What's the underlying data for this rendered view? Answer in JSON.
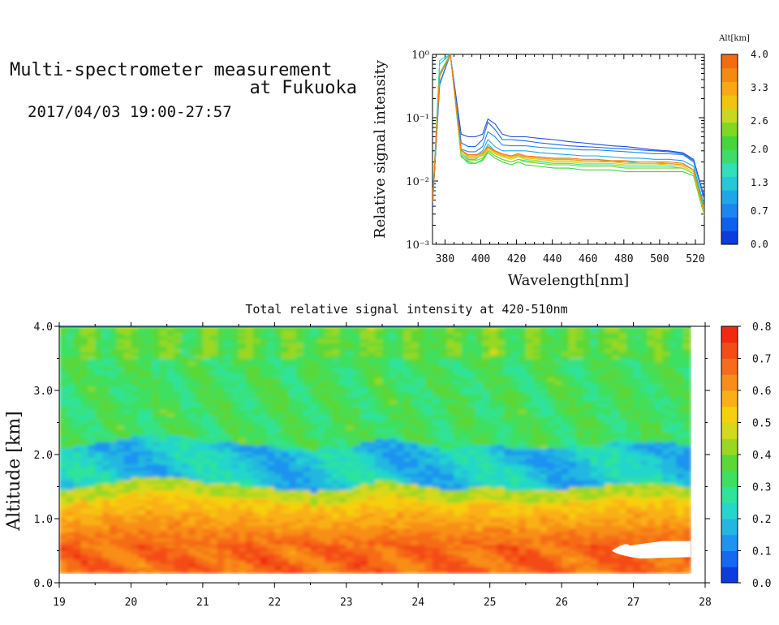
{
  "header": {
    "title_line1": "Multi-spectrometer measurement",
    "title_line2": "at Fukuoka",
    "period": "2017/04/03 19:00-27:57"
  },
  "chart_data": [
    {
      "type": "line",
      "title": "",
      "xlabel": "Wavelength[nm]",
      "ylabel": "Relative signal intensity",
      "yscale": "log",
      "xlim": [
        373,
        525
      ],
      "ylim": [
        0.001,
        1
      ],
      "x_ticks": [
        380,
        400,
        420,
        440,
        460,
        480,
        500,
        520
      ],
      "y_ticks": [
        "10⁻³",
        "10⁻²",
        "10⁻¹",
        "10⁰"
      ],
      "x": [
        373,
        377,
        383,
        389,
        393,
        397,
        401,
        404,
        408,
        412,
        417,
        421,
        425,
        433,
        441,
        449,
        457,
        465,
        473,
        481,
        489,
        497,
        505,
        513,
        519,
        525
      ],
      "legend_title": "Alt[km]",
      "series": [
        {
          "alt": 0.0,
          "color": "#1f4fd6",
          "values": [
            0.004,
            0.35,
            1.0,
            0.055,
            0.05,
            0.05,
            0.055,
            0.095,
            0.08,
            0.055,
            0.05,
            0.05,
            0.05,
            0.047,
            0.045,
            0.042,
            0.04,
            0.038,
            0.036,
            0.035,
            0.033,
            0.031,
            0.03,
            0.028,
            0.022,
            0.0055
          ]
        },
        {
          "alt": 0.35,
          "color": "#1e67e8",
          "values": [
            0.004,
            0.34,
            1.0,
            0.04,
            0.035,
            0.035,
            0.045,
            0.085,
            0.065,
            0.045,
            0.045,
            0.044,
            0.043,
            0.04,
            0.038,
            0.036,
            0.035,
            0.034,
            0.033,
            0.032,
            0.031,
            0.03,
            0.029,
            0.027,
            0.021,
            0.005
          ]
        },
        {
          "alt": 0.7,
          "color": "#1e8bef",
          "values": [
            0.004,
            0.33,
            1.0,
            0.032,
            0.029,
            0.029,
            0.035,
            0.06,
            0.05,
            0.037,
            0.036,
            0.036,
            0.036,
            0.034,
            0.033,
            0.032,
            0.031,
            0.031,
            0.03,
            0.029,
            0.028,
            0.027,
            0.027,
            0.026,
            0.02,
            0.005
          ]
        },
        {
          "alt": 1.0,
          "color": "#1ea8e8",
          "values": [
            0.0045,
            0.5,
            1.0,
            0.03,
            0.025,
            0.025,
            0.03,
            0.045,
            0.035,
            0.03,
            0.03,
            0.03,
            0.03,
            0.028,
            0.027,
            0.026,
            0.025,
            0.025,
            0.024,
            0.023,
            0.023,
            0.022,
            0.022,
            0.021,
            0.017,
            0.004
          ]
        },
        {
          "alt": 1.3,
          "color": "#1fc8d8",
          "values": [
            0.0045,
            0.7,
            1.0,
            0.028,
            0.022,
            0.022,
            0.026,
            0.038,
            0.03,
            0.025,
            0.025,
            0.025,
            0.024,
            0.023,
            0.022,
            0.022,
            0.021,
            0.021,
            0.02,
            0.02,
            0.019,
            0.019,
            0.019,
            0.018,
            0.015,
            0.0038
          ]
        },
        {
          "alt": 1.6,
          "color": "#2fe0b0",
          "values": [
            0.0045,
            0.8,
            1.0,
            0.025,
            0.019,
            0.019,
            0.022,
            0.03,
            0.025,
            0.022,
            0.02,
            0.022,
            0.021,
            0.02,
            0.019,
            0.019,
            0.018,
            0.018,
            0.018,
            0.017,
            0.017,
            0.017,
            0.017,
            0.016,
            0.013,
            0.0035
          ]
        },
        {
          "alt": 2.0,
          "color": "#3ad645",
          "values": [
            0.0045,
            0.5,
            1.0,
            0.024,
            0.02,
            0.019,
            0.021,
            0.028,
            0.023,
            0.02,
            0.018,
            0.02,
            0.018,
            0.017,
            0.016,
            0.016,
            0.015,
            0.015,
            0.015,
            0.014,
            0.014,
            0.014,
            0.014,
            0.014,
            0.012,
            0.0028
          ]
        },
        {
          "alt": 2.3,
          "color": "#7fd620",
          "values": [
            0.0045,
            0.45,
            1.0,
            0.026,
            0.021,
            0.021,
            0.023,
            0.03,
            0.025,
            0.022,
            0.02,
            0.022,
            0.02,
            0.019,
            0.018,
            0.018,
            0.017,
            0.017,
            0.017,
            0.016,
            0.016,
            0.016,
            0.016,
            0.016,
            0.013,
            0.003
          ]
        },
        {
          "alt": 2.6,
          "color": "#c8d820",
          "values": [
            0.0045,
            0.45,
            1.0,
            0.028,
            0.023,
            0.023,
            0.025,
            0.031,
            0.027,
            0.024,
            0.022,
            0.024,
            0.022,
            0.021,
            0.02,
            0.02,
            0.019,
            0.019,
            0.019,
            0.018,
            0.018,
            0.018,
            0.018,
            0.017,
            0.014,
            0.003
          ]
        },
        {
          "alt": 3.0,
          "color": "#f0c410",
          "values": [
            0.0045,
            0.45,
            1.0,
            0.03,
            0.024,
            0.024,
            0.026,
            0.033,
            0.028,
            0.025,
            0.023,
            0.025,
            0.023,
            0.022,
            0.021,
            0.021,
            0.02,
            0.02,
            0.02,
            0.019,
            0.019,
            0.019,
            0.018,
            0.017,
            0.014,
            0.0032
          ]
        },
        {
          "alt": 3.3,
          "color": "#f8a010",
          "values": [
            0.0045,
            0.45,
            1.0,
            0.03,
            0.025,
            0.025,
            0.027,
            0.034,
            0.029,
            0.026,
            0.024,
            0.026,
            0.024,
            0.023,
            0.022,
            0.022,
            0.021,
            0.021,
            0.021,
            0.02,
            0.02,
            0.02,
            0.019,
            0.018,
            0.015,
            0.0032
          ]
        },
        {
          "alt": 3.7,
          "color": "#f57a10",
          "values": [
            0.0045,
            0.45,
            1.0,
            0.031,
            0.026,
            0.026,
            0.028,
            0.035,
            0.03,
            0.027,
            0.025,
            0.027,
            0.025,
            0.024,
            0.023,
            0.023,
            0.022,
            0.022,
            0.021,
            0.021,
            0.02,
            0.02,
            0.02,
            0.019,
            0.015,
            0.0033
          ]
        }
      ],
      "colorbar": {
        "title": "Alt[km]",
        "min": 0.0,
        "max": 4.0,
        "ticks": [
          "0.0",
          "0.7",
          "1.3",
          "2.0",
          "2.6",
          "3.3",
          "4.0"
        ]
      }
    },
    {
      "type": "heatmap",
      "title": "Total relative signal intensity at 420-510nm",
      "xlabel": "",
      "ylabel": "Altitude [km]",
      "xlim": [
        19,
        28
      ],
      "ylim": [
        0.0,
        4.0
      ],
      "x_ticks": [
        "19",
        "20",
        "21",
        "22",
        "23",
        "24",
        "25",
        "26",
        "27",
        "28"
      ],
      "y_ticks": [
        "0.0",
        "1.0",
        "2.0",
        "3.0",
        "4.0"
      ],
      "data_extent_x": [
        19.0,
        27.8
      ],
      "data_extent_y": [
        0.15,
        4.0
      ],
      "boundary_layer_top_km": {
        "times": [
          19.0,
          19.5,
          20.0,
          20.5,
          21.0,
          21.5,
          22.0,
          22.5,
          23.0,
          23.5,
          24.0,
          24.5,
          25.0,
          25.5,
          26.0,
          26.5,
          27.0,
          27.5,
          27.8
        ],
        "heights": [
          1.35,
          1.42,
          1.52,
          1.58,
          1.48,
          1.42,
          1.38,
          1.32,
          1.36,
          1.5,
          1.42,
          1.35,
          1.4,
          1.33,
          1.36,
          1.42,
          1.46,
          1.45,
          1.4
        ]
      },
      "values_described": "intensity ~0.7 near surface (red/orange), ~0.5 at 1.0-1.4 km, ~0.2 band at 1.5-2.0 km, ~0.3-0.4 above 2 km",
      "missing_region": {
        "x": [
          26.7,
          27.8
        ],
        "y": [
          0.4,
          0.65
        ]
      },
      "colorbar": {
        "min": 0.0,
        "max": 0.8,
        "ticks": [
          "0.0",
          "0.1",
          "0.2",
          "0.3",
          "0.4",
          "0.5",
          "0.6",
          "0.7",
          "0.8"
        ]
      }
    }
  ]
}
